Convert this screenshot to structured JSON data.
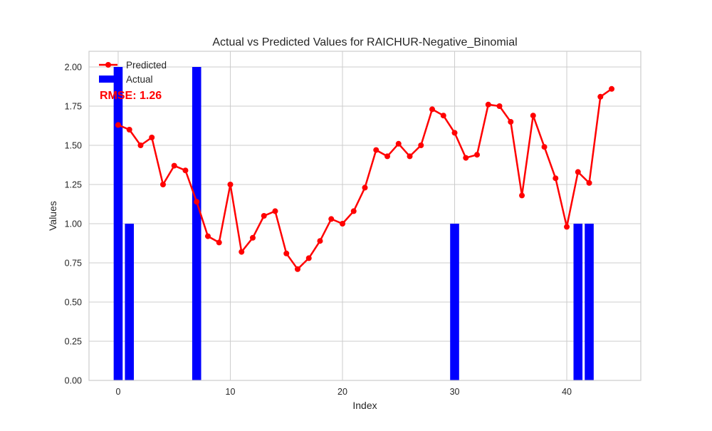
{
  "chart_data": {
    "type": "bar+line",
    "title": "Actual vs Predicted Values for RAICHUR-Negative_Binomial",
    "xlabel": "Index",
    "ylabel": "Values",
    "xlim": [
      -2.6,
      46.6
    ],
    "ylim": [
      0,
      2.1
    ],
    "x_ticks": [
      0,
      10,
      20,
      30,
      40
    ],
    "y_ticks": [
      0.0,
      0.25,
      0.5,
      0.75,
      1.0,
      1.25,
      1.5,
      1.75,
      2.0
    ],
    "x_tick_labels": [
      "0",
      "10",
      "20",
      "30",
      "40"
    ],
    "y_tick_labels": [
      "0.00",
      "0.25",
      "0.50",
      "0.75",
      "1.00",
      "1.25",
      "1.50",
      "1.75",
      "2.00"
    ],
    "grid": true,
    "legend_position": "top-left",
    "annotation": "RMSE: 1.26",
    "series": [
      {
        "name": "Predicted",
        "kind": "line",
        "color": "#ff0000",
        "x": [
          0,
          1,
          2,
          3,
          4,
          5,
          6,
          7,
          8,
          9,
          10,
          11,
          12,
          13,
          14,
          15,
          16,
          17,
          18,
          19,
          20,
          21,
          22,
          23,
          24,
          25,
          26,
          27,
          28,
          29,
          30,
          31,
          32,
          33,
          34,
          35,
          36,
          37,
          38,
          39,
          40,
          41,
          42,
          43,
          44
        ],
        "values": [
          1.63,
          1.6,
          1.5,
          1.55,
          1.25,
          1.37,
          1.34,
          1.14,
          0.92,
          0.88,
          1.25,
          0.82,
          0.91,
          1.05,
          1.08,
          0.81,
          0.71,
          0.78,
          0.89,
          1.03,
          1.0,
          1.08,
          1.23,
          1.47,
          1.43,
          1.51,
          1.43,
          1.5,
          1.73,
          1.69,
          1.58,
          1.42,
          1.44,
          1.76,
          1.75,
          1.65,
          1.18,
          1.69,
          1.49,
          1.29,
          0.98,
          1.33,
          1.26,
          1.81,
          1.86
        ]
      },
      {
        "name": "Actual",
        "kind": "bar",
        "color": "#0000ff",
        "x": [
          0,
          1,
          2,
          3,
          4,
          5,
          6,
          7,
          8,
          9,
          10,
          11,
          12,
          13,
          14,
          15,
          16,
          17,
          18,
          19,
          20,
          21,
          22,
          23,
          24,
          25,
          26,
          27,
          28,
          29,
          30,
          31,
          32,
          33,
          34,
          35,
          36,
          37,
          38,
          39,
          40,
          41,
          42,
          43,
          44
        ],
        "values": [
          2,
          1,
          0,
          0,
          0,
          0,
          0,
          2,
          0,
          0,
          0,
          0,
          0,
          0,
          0,
          0,
          0,
          0,
          0,
          0,
          0,
          0,
          0,
          0,
          0,
          0,
          0,
          0,
          0,
          0,
          1,
          0,
          0,
          0,
          0,
          0,
          0,
          0,
          0,
          0,
          0,
          1,
          1,
          0,
          0
        ]
      }
    ]
  }
}
